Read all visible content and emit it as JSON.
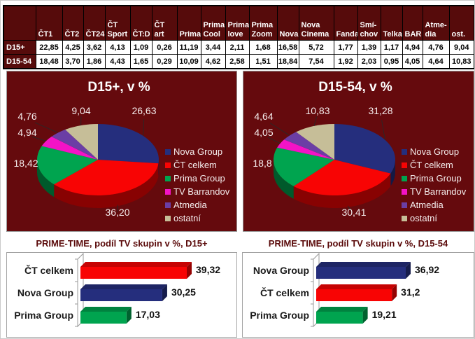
{
  "table": {
    "row_header_label": "",
    "columns": [
      "ČT1",
      "ČT2",
      "ČT24",
      "ČT Sport",
      "ČT:D",
      "ČT art",
      "Prima",
      "Prima Cool",
      "Prima love",
      "Prima Zoom",
      "Nova",
      "Nova Cinema",
      "Fanda",
      "Smí-chov",
      "Telka",
      "BAR",
      "Atme-dia",
      "ost."
    ],
    "rows": [
      {
        "label": "D15+",
        "values": [
          "22,85",
          "4,25",
          "3,62",
          "4,13",
          "1,09",
          "0,26",
          "11,19",
          "3,44",
          "2,11",
          "1,68",
          "16,58",
          "5,72",
          "1,77",
          "1,39",
          "1,17",
          "4,94",
          "4,76",
          "9,04"
        ]
      },
      {
        "label": "D15-54",
        "values": [
          "18,48",
          "3,70",
          "1,86",
          "4,43",
          "1,65",
          "0,29",
          "10,09",
          "4,62",
          "2,58",
          "1,51",
          "18,84",
          "7,54",
          "1,92",
          "2,03",
          "0,95",
          "4,05",
          "4,64",
          "10,83"
        ]
      }
    ]
  },
  "chart_data": [
    {
      "type": "pie",
      "title": "D15+, v %",
      "labels": [
        "Nova Group",
        "ČT celkem",
        "Prima Group",
        "TV Barrandov",
        "Atmedia",
        "ostatní"
      ],
      "values": [
        26.63,
        36.2,
        18.42,
        4.94,
        4.76,
        9.04
      ],
      "value_labels": [
        "26,63",
        "36,20",
        "18,42",
        "4,94",
        "4,76",
        "9,04"
      ],
      "legend_position": "right",
      "style": "3d-pie",
      "background": "#650A0D"
    },
    {
      "type": "pie",
      "title": "D15-54, v %",
      "labels": [
        "Nova Group",
        "ČT celkem",
        "Prima Group",
        "TV Barrandov",
        "Atmedia",
        "ostatní"
      ],
      "values": [
        31.28,
        30.41,
        18.8,
        4.05,
        4.64,
        10.83
      ],
      "value_labels": [
        "31,28",
        "30,41",
        "18,8",
        "4,05",
        "4,64",
        "10,83"
      ],
      "legend_position": "right",
      "style": "3d-pie",
      "background": "#650A0D"
    },
    {
      "type": "bar",
      "title": "PRIME-TIME, podíl TV skupin v %, D15+",
      "orientation": "horizontal",
      "categories": [
        "ČT celkem",
        "Nova Group",
        "Prima Group"
      ],
      "values": [
        39.32,
        30.25,
        17.03
      ],
      "value_labels": [
        "39,32",
        "30,25",
        "17,03"
      ],
      "style": "3d-bar",
      "grid": false,
      "legend": false
    },
    {
      "type": "bar",
      "title": "PRIME-TIME, podíl TV skupin v %, D15-54",
      "orientation": "horizontal",
      "categories": [
        "Nova Group",
        "ČT celkem",
        "Prima Group"
      ],
      "values": [
        36.92,
        31.2,
        19.21
      ],
      "value_labels": [
        "36,92",
        "31,2",
        "19,21"
      ],
      "style": "3d-bar",
      "grid": false,
      "legend": false
    }
  ],
  "colors": {
    "series": {
      "Nova Group": "#252E7D",
      "ČT celkem": "#F80404",
      "Prima Group": "#00A44F",
      "TV Barrandov": "#F313C6",
      "Atmedia": "#6B3EA5",
      "ostatní": "#C6BE98"
    },
    "pie_background": "#650A0D",
    "table_header_background": "#560B0B",
    "pie_text": "#F5EDED",
    "title_text": "#FFFFFF",
    "bar_title_text": "#5A0A0A",
    "bar_value_text": "#111111"
  }
}
